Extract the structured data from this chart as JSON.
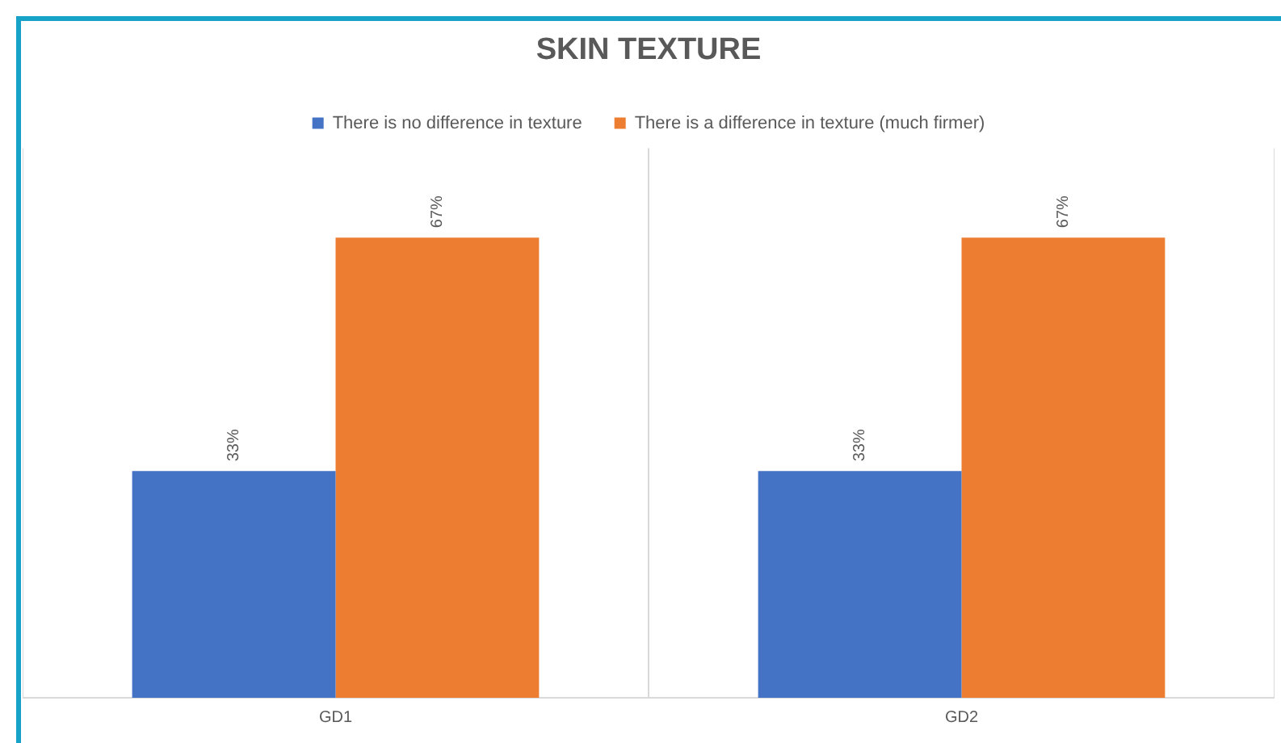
{
  "chart_data": {
    "type": "bar",
    "title": "SKIN TEXTURE",
    "categories": [
      "GD1",
      "GD2"
    ],
    "series": [
      {
        "name": "There is no difference in texture",
        "color": "#4472c4",
        "values": [
          33,
          33
        ],
        "value_labels": [
          "33%",
          "33%"
        ]
      },
      {
        "name": "There is a difference in texture (much firmer)",
        "color": "#ed7d31",
        "values": [
          67,
          67
        ],
        "value_labels": [
          "67%",
          "67%"
        ]
      }
    ],
    "ylim": [
      0,
      80
    ],
    "tick_labels": "x",
    "grid": "x",
    "legend": "top"
  }
}
